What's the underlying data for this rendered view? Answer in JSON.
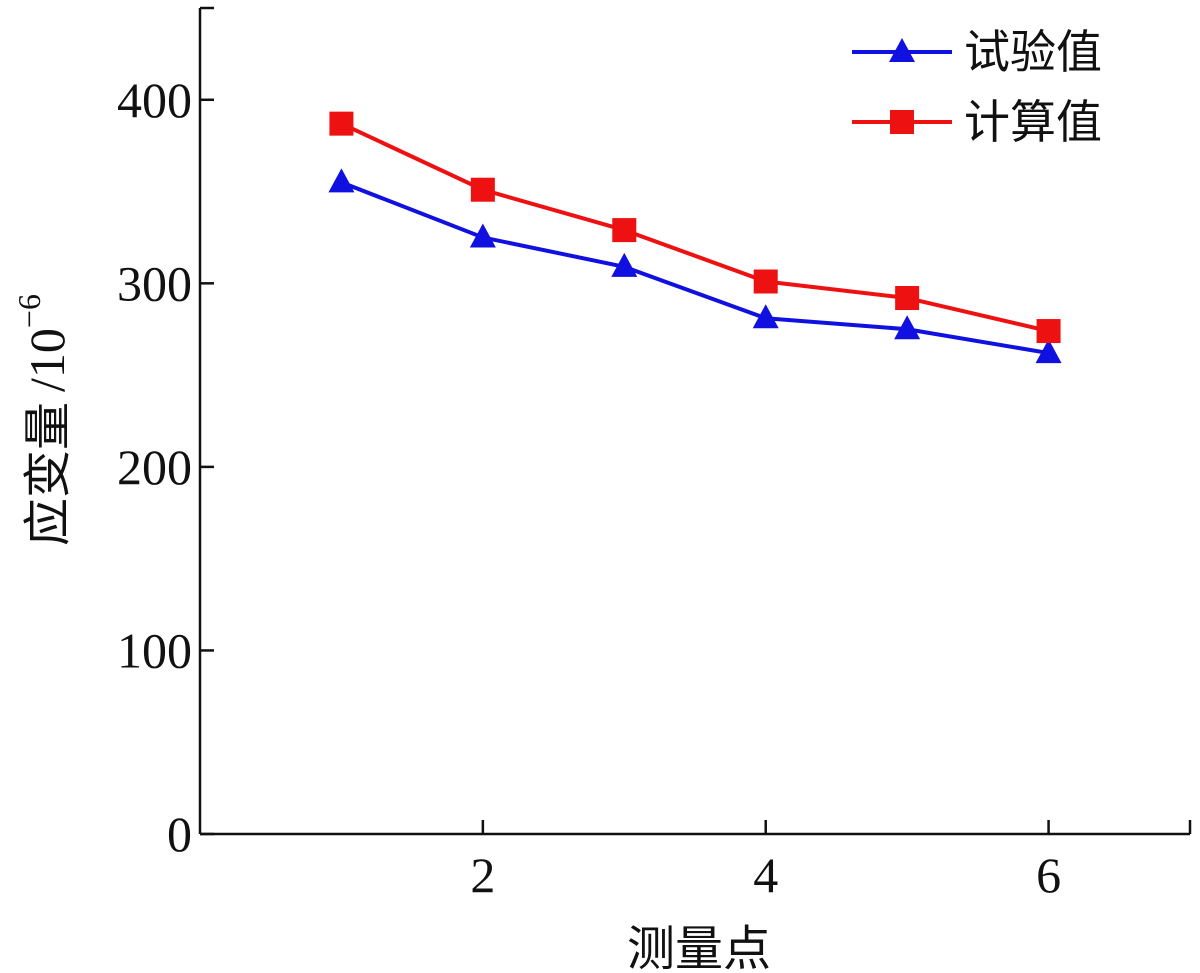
{
  "chart_data": {
    "type": "line",
    "xlabel": "测量点",
    "ylabel": "应变量",
    "ylabel_unit": "/10",
    "ylabel_unit_exp": "−6",
    "xlim": [
      0,
      7
    ],
    "ylim": [
      0,
      450
    ],
    "x_ticks": [
      2,
      4,
      6
    ],
    "y_ticks": [
      0,
      100,
      200,
      300,
      400
    ],
    "x": [
      1,
      2,
      3,
      4,
      5,
      6
    ],
    "grid": false,
    "legend_position": "top-right",
    "series": [
      {
        "name": "试验值",
        "marker": "triangle",
        "color": "#1010e0",
        "values": [
          355,
          325,
          309,
          281,
          275,
          262
        ]
      },
      {
        "name": "计算值",
        "marker": "square",
        "color": "#ee1111",
        "values": [
          387,
          351,
          329,
          301,
          292,
          274
        ]
      }
    ]
  }
}
